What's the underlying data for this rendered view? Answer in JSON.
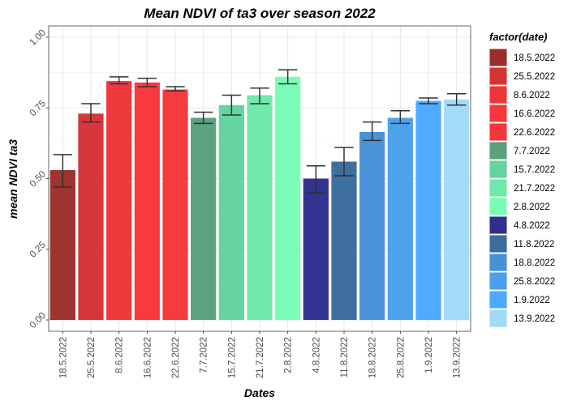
{
  "chart_data": {
    "type": "bar",
    "title": "Mean NDVI of ta3 over season 2022",
    "xlabel": "Dates",
    "ylabel": "mean NDVI ta3",
    "ylim": [
      -0.04,
      1.04
    ],
    "yticks": [
      0.0,
      0.25,
      0.5,
      0.75,
      1.0
    ],
    "ytick_labels": [
      "0.00",
      "0.25",
      "0.50",
      "0.75",
      "1.00"
    ],
    "legend_title": "factor(date)",
    "legend_position": "right",
    "grid": true,
    "categories": [
      "18.5.2022",
      "25.5.2022",
      "8.6.2022",
      "16.6.2022",
      "22.6.2022",
      "7.7.2022",
      "15.7.2022",
      "21.7.2022",
      "2.8.2022",
      "4.8.2022",
      "11.8.2022",
      "18.8.2022",
      "25.8.2022",
      "1.9.2022",
      "13.9.2022"
    ],
    "values": [
      0.53,
      0.73,
      0.845,
      0.84,
      0.815,
      0.715,
      0.76,
      0.795,
      0.86,
      0.5,
      0.56,
      0.665,
      0.715,
      0.775,
      0.78
    ],
    "err_low": [
      0.47,
      0.7,
      0.835,
      0.825,
      0.81,
      0.695,
      0.725,
      0.765,
      0.835,
      0.45,
      0.51,
      0.635,
      0.695,
      0.765,
      0.76
    ],
    "err_high": [
      0.585,
      0.765,
      0.86,
      0.855,
      0.825,
      0.735,
      0.795,
      0.82,
      0.885,
      0.545,
      0.61,
      0.7,
      0.74,
      0.785,
      0.8
    ],
    "colors": [
      "#9c2f2b",
      "#d63334",
      "#ef3538",
      "#f8363b",
      "#f5373a",
      "#5aa07d",
      "#63d39f",
      "#6ee9a9",
      "#79fdb6",
      "#2f2f90",
      "#3a6c9c",
      "#4691d8",
      "#4aa0ec",
      "#4ba9ff",
      "#a2daf8"
    ]
  }
}
